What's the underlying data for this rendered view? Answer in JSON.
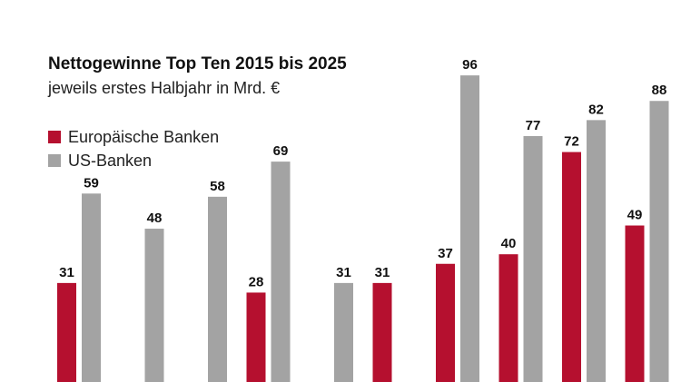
{
  "chart_data": {
    "type": "bar",
    "title": "Nettogewinne Top Ten 2015 bis 2025",
    "subtitle": "jeweils erstes Halbjahr in Mrd. €",
    "xlabel": "",
    "ylabel": "",
    "categories": [
      "",
      "",
      "",
      "",
      "",
      "",
      "",
      "",
      "",
      ""
    ],
    "series": [
      {
        "name": "Europäische Banken",
        "color": "#b5102f",
        "values": [
          31,
          null,
          null,
          28,
          null,
          31,
          37,
          40,
          72,
          49
        ]
      },
      {
        "name": "US-Banken",
        "color": "#a3a3a3",
        "values": [
          59,
          48,
          58,
          69,
          31,
          null,
          96,
          77,
          82,
          88
        ]
      }
    ],
    "value_labels": [
      [
        "31",
        "59"
      ],
      [
        "",
        "48"
      ],
      [
        "",
        "58"
      ],
      [
        "28",
        "69"
      ],
      [
        "",
        "31"
      ],
      [
        "31",
        ""
      ],
      [
        "37",
        "96"
      ],
      [
        "40",
        "77"
      ],
      [
        "72",
        "82"
      ],
      [
        "49",
        "88"
      ]
    ],
    "ylim": [
      0,
      96
    ],
    "grid": false,
    "legend_position": "top-left"
  }
}
